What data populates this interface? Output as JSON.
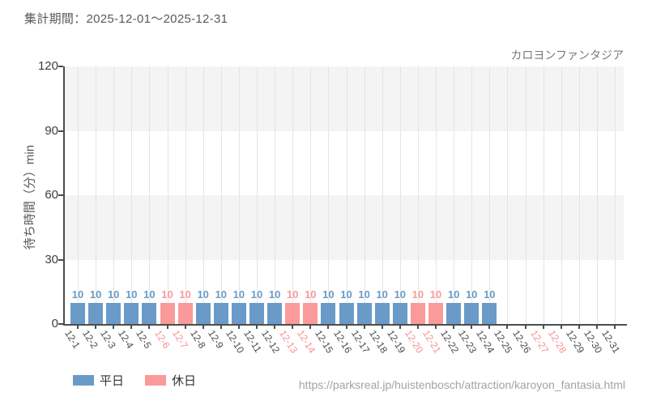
{
  "header": {
    "title": "集計期間：2025-12-01～2025-12-31"
  },
  "chart": {
    "name": "カロヨンファンタジア",
    "y_axis_label": "待ち時間（分）min",
    "legend": [
      {
        "label": "平日",
        "type": "weekday"
      },
      {
        "label": "休日",
        "type": "holiday"
      }
    ]
  },
  "chart_data": {
    "type": "bar",
    "title": "カロヨンファンタジア 待ち時間",
    "period": "2025-12-01～2025-12-31",
    "categories": [
      "12-1",
      "12-2",
      "12-3",
      "12-4",
      "12-5",
      "12-6",
      "12-7",
      "12-8",
      "12-9",
      "12-10",
      "12-11",
      "12-12",
      "12-13",
      "12-14",
      "12-15",
      "12-16",
      "12-17",
      "12-18",
      "12-19",
      "12-20",
      "12-21",
      "12-22",
      "12-23",
      "12-24",
      "12-25",
      "12-26",
      "12-27",
      "12-28",
      "12-29",
      "12-30",
      "12-31"
    ],
    "values": [
      10,
      10,
      10,
      10,
      10,
      10,
      10,
      10,
      10,
      10,
      10,
      10,
      10,
      10,
      10,
      10,
      10,
      10,
      10,
      10,
      10,
      10,
      10,
      10,
      null,
      null,
      null,
      null,
      null,
      null,
      null
    ],
    "day_types": [
      "weekday",
      "weekday",
      "weekday",
      "weekday",
      "weekday",
      "holiday",
      "holiday",
      "weekday",
      "weekday",
      "weekday",
      "weekday",
      "weekday",
      "holiday",
      "holiday",
      "weekday",
      "weekday",
      "weekday",
      "weekday",
      "weekday",
      "holiday",
      "holiday",
      "weekday",
      "weekday",
      "weekday",
      "weekday",
      "weekday",
      "holiday",
      "holiday",
      "weekday",
      "weekday",
      "weekday"
    ],
    "ylabel": "待ち時間（分）min",
    "ylim": [
      0,
      120
    ],
    "yticks": [
      0,
      30,
      60,
      90,
      120
    ],
    "grid": "horizontal bands + vertical gridlines",
    "legend_position": "bottom-left",
    "colors": {
      "weekday": "#6a9bc8",
      "holiday": "#fb9a9a"
    },
    "label_colors": {
      "weekday": "#4a4a4a",
      "holiday": "#f79191"
    }
  },
  "footer": {
    "url": "https://parksreal.jp/huistenbosch/attraction/karoyon_fantasia.html"
  }
}
